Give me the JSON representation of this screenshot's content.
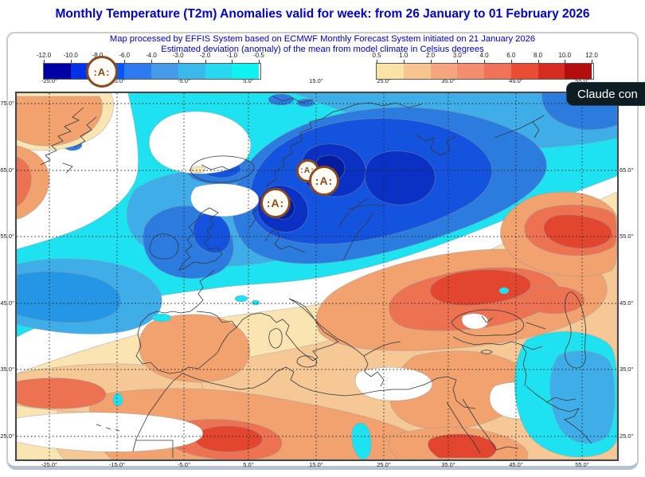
{
  "title": "Monthly Temperature (T2m) Anomalies valid for week: from 26 January to 01 February 2026",
  "subtitle_line1": "Map processed by EFFIS System based on ECMWF Monthly Forecast System initiated on 21 January 2026",
  "subtitle_line2": "Estimated deviation (anomaly) of the mean from model climate in Celsius degrees",
  "title_color": "#0101C6",
  "overlay_tooltip": {
    "text": "Claude con",
    "bg": "#0E1D24",
    "text_color": "#FFFFFF"
  },
  "stamp": {
    "text": ":A:",
    "color": "#8A4A1E",
    "fill": "#FFFDF6"
  },
  "colorbars": {
    "negative": {
      "tick_labels": [
        "-12.0",
        "-10.0",
        "-8.0",
        "-6.0",
        "-4.0",
        "-3.0",
        "-2.0",
        "-1.0",
        "-0.5"
      ],
      "segment_colors": [
        "#0000A5",
        "#0033E8",
        "#0057FA",
        "#2E7BF0",
        "#469AEA",
        "#3CB9EC",
        "#27D8F0",
        "#0FF2F2"
      ]
    },
    "positive": {
      "tick_labels": [
        "0.5",
        "1.0",
        "2.0",
        "3.0",
        "4.0",
        "6.0",
        "8.0",
        "10.0",
        "12.0"
      ],
      "segment_colors": [
        "#FBE3A8",
        "#F8C490",
        "#F5A67E",
        "#F28D6E",
        "#F07258",
        "#EB4C34",
        "#D62B20",
        "#B20E0E"
      ]
    }
  },
  "map_axes": {
    "longitude_labels": [
      "-25.0°",
      "-15.0°",
      "-5.0°",
      "5.0°",
      "15.0°",
      "25.0°",
      "35.0°",
      "45.0°",
      "55.0°"
    ],
    "latitude_labels": [
      "75.0°",
      "65.0°",
      "55.0°",
      "45.0°",
      "35.0°",
      "25.0°"
    ]
  },
  "palette": {
    "map_white": "#FFFFFF",
    "cyan": "#1FE2F0",
    "sky": "#3FADE8",
    "sky_deep": "#2496E4",
    "blue_med": "#2C7CE0",
    "blue_strong": "#1453DE",
    "blue_deep": "#0A30C4",
    "blue_darkest": "#041C9E",
    "cream": "#FAE5B2",
    "tan": "#F6C896",
    "orange": "#F2A26E",
    "coral": "#ED7252",
    "red": "#E2462E"
  }
}
